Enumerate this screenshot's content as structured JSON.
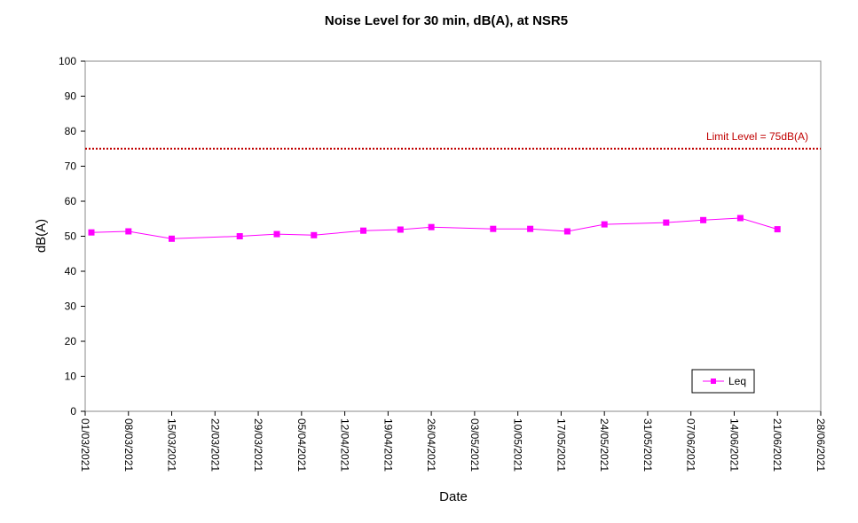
{
  "chart_data": {
    "type": "line",
    "title": "Noise Level for 30 min, dB(A), at NSR5",
    "xlabel": "Date",
    "ylabel": "dB(A)",
    "ylim": [
      0,
      100
    ],
    "yticks": [
      0,
      10,
      20,
      30,
      40,
      50,
      60,
      70,
      80,
      90,
      100
    ],
    "xlim": [
      "2021-03-01",
      "2021-06-28"
    ],
    "xtick_labels": [
      "01/03/2021",
      "08/03/2021",
      "15/03/2021",
      "22/03/2021",
      "29/03/2021",
      "05/04/2021",
      "12/04/2021",
      "19/04/2021",
      "26/04/2021",
      "03/05/2021",
      "10/05/2021",
      "17/05/2021",
      "24/05/2021",
      "31/05/2021",
      "07/06/2021",
      "14/06/2021",
      "21/06/2021",
      "28/06/2021"
    ],
    "series": [
      {
        "name": "Leq",
        "color": "#ff00ff",
        "marker": "square",
        "x": [
          "2021-03-02",
          "2021-03-08",
          "2021-03-15",
          "2021-03-26",
          "2021-04-01",
          "2021-04-07",
          "2021-04-15",
          "2021-04-21",
          "2021-04-26",
          "2021-05-06",
          "2021-05-12",
          "2021-05-18",
          "2021-05-24",
          "2021-06-03",
          "2021-06-09",
          "2021-06-15",
          "2021-06-21"
        ],
        "y": [
          51.1,
          51.4,
          49.3,
          50.0,
          50.6,
          50.3,
          51.6,
          51.9,
          52.6,
          52.1,
          52.1,
          51.4,
          53.4,
          53.9,
          54.6,
          55.2,
          52.0
        ]
      }
    ],
    "reference_lines": [
      {
        "label": "Limit Level  = 75dB(A)",
        "y": 75,
        "color": "#c00000",
        "style": "dotted"
      }
    ],
    "legend": {
      "position": "bottom-right",
      "entries": [
        "Leq"
      ]
    },
    "grid": false
  }
}
